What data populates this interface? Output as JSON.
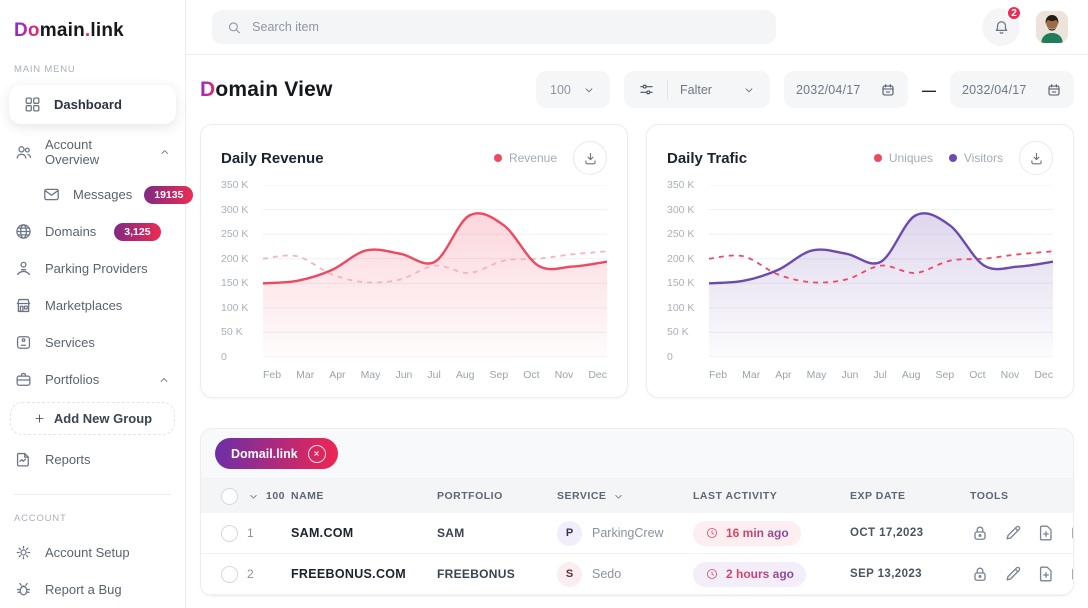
{
  "brand": {
    "gradient": "Do",
    "rest": "main",
    "dot": ".",
    "suffix": "link"
  },
  "colors": {
    "accent_red": "#ef4861",
    "accent_purple": "#6d4aad",
    "dashed_pink": "#f6b3c0",
    "badge_gradient_start": "#7e2a85",
    "badge_gradient_end": "#ef2b52",
    "notification": "#ef2b52"
  },
  "sidebar": {
    "sections": [
      {
        "label": "Main Menu"
      },
      {
        "label": "Account"
      }
    ],
    "items": {
      "dashboard": {
        "label": "Dashboard"
      },
      "account_overview": {
        "label": "Account Overview"
      },
      "messages": {
        "label": "Messages",
        "badge": "19135"
      },
      "domains": {
        "label": "Domains",
        "badge": "3,125"
      },
      "parking_providers": {
        "label": "Parking Providers"
      },
      "marketplaces": {
        "label": "Marketplaces"
      },
      "services": {
        "label": "Services"
      },
      "portfolios": {
        "label": "Portfolios"
      },
      "add_new_group": {
        "label": "Add New Group"
      },
      "reports": {
        "label": "Reports"
      },
      "account_setup": {
        "label": "Account Setup"
      },
      "report_a_bug": {
        "label": "Report a Bug"
      }
    }
  },
  "topbar": {
    "search_placeholder": "Search item",
    "notification_count": "2"
  },
  "page": {
    "title_gradient": "D",
    "title_rest": "omain View",
    "per_page": "100",
    "filter_label": "Falter",
    "date_from": "2032/04/17",
    "date_separator": "—",
    "date_to": "2032/04/17"
  },
  "charts": [
    {
      "title": "Daily Revenue",
      "legend": [
        {
          "label": "Revenue",
          "color": "#ef4861"
        }
      ],
      "chart_data": {
        "type": "line",
        "unit": "K",
        "categories": [
          "Feb",
          "Mar",
          "Apr",
          "May",
          "Jun",
          "Jul",
          "Aug",
          "Sep",
          "Oct",
          "Nov",
          "Dec"
        ],
        "ylim": [
          0,
          350
        ],
        "yticks": [
          0,
          50,
          100,
          150,
          200,
          250,
          300,
          350
        ],
        "ytick_labels": [
          "0",
          "50 K",
          "100 K",
          "150 K",
          "200 K",
          "250 K",
          "300 K",
          "350 K"
        ],
        "grid": true,
        "legend_position": "top-right",
        "series": [
          {
            "name": "Revenue",
            "style": "solid",
            "color": "#ef4861",
            "fill": true,
            "values": [
              150,
              155,
              177,
              217,
              210,
              194,
              288,
              268,
              186,
              184,
              194
            ]
          },
          {
            "name": "",
            "style": "dashed",
            "color": "#f6b3c0",
            "fill": false,
            "values": [
              200,
              205,
              168,
              152,
              158,
              186,
              171,
              196,
              200,
              209,
              215
            ]
          }
        ]
      }
    },
    {
      "title": "Daily Trafic",
      "legend": [
        {
          "label": "Uniques",
          "color": "#ef4861"
        },
        {
          "label": "Visitors",
          "color": "#6d4aad"
        }
      ],
      "chart_data": {
        "type": "line",
        "unit": "K",
        "categories": [
          "Feb",
          "Mar",
          "Apr",
          "May",
          "Jun",
          "Jul",
          "Aug",
          "Sep",
          "Oct",
          "Nov",
          "Dec"
        ],
        "ylim": [
          0,
          350
        ],
        "yticks": [
          0,
          50,
          100,
          150,
          200,
          250,
          300,
          350
        ],
        "ytick_labels": [
          "0",
          "50 K",
          "100 K",
          "150 K",
          "200 K",
          "250 K",
          "300 K",
          "350 K"
        ],
        "grid": true,
        "legend_position": "top-right",
        "series": [
          {
            "name": "Visitors",
            "style": "solid",
            "color": "#6d4aad",
            "fill": true,
            "values": [
              150,
              155,
              177,
              217,
              210,
              194,
              288,
              268,
              186,
              184,
              194
            ]
          },
          {
            "name": "Uniques",
            "style": "dashed",
            "color": "#ef4861",
            "fill": false,
            "values": [
              200,
              205,
              168,
              152,
              158,
              186,
              171,
              196,
              200,
              209,
              215
            ]
          }
        ]
      }
    }
  ],
  "table": {
    "chip": "Domail.link",
    "headers": {
      "count": "100",
      "name": "NAME",
      "portfolio": "PORTFOLIO",
      "service": "SERVICE",
      "last_activity": "LAST ACTIVITY",
      "exp_date": "EXP DATE",
      "tools": "TOOLS"
    },
    "rows": [
      {
        "num": "1",
        "name": "SAM.COM",
        "portfolio": "SAM",
        "service_initial": "P",
        "service": "ParkingCrew",
        "last_activity": "16 min ago",
        "exp_date": "OCT 17,2023"
      },
      {
        "num": "2",
        "name": "FREEBONUS.COM",
        "portfolio": "FREEBONUS",
        "service_initial": "S",
        "service": "Sedo",
        "last_activity": "2 hours ago",
        "exp_date": "SEP 13,2023"
      }
    ]
  }
}
